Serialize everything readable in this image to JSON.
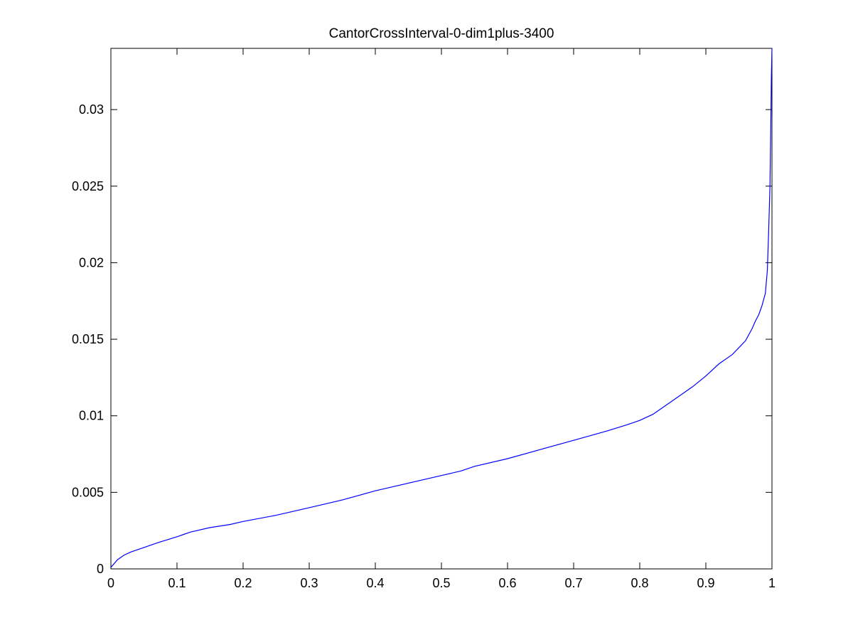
{
  "chart_data": {
    "type": "line",
    "title": "CantorCrossInterval-0-dim1plus-3400",
    "xlabel": "",
    "ylabel": "",
    "xlim": [
      0,
      1
    ],
    "ylim": [
      0,
      0.034
    ],
    "grid": false,
    "legend": "none",
    "x_ticks": [
      0,
      0.1,
      0.2,
      0.3,
      0.4,
      0.5,
      0.6,
      0.7,
      0.8,
      0.9,
      1
    ],
    "x_tick_labels": [
      "0",
      "0.1",
      "0.2",
      "0.3",
      "0.4",
      "0.5",
      "0.6",
      "0.7",
      "0.8",
      "0.9",
      "1"
    ],
    "y_ticks": [
      0,
      0.005,
      0.01,
      0.015,
      0.02,
      0.025,
      0.03
    ],
    "y_tick_labels": [
      "0",
      "0.005",
      "0.01",
      "0.015",
      "0.02",
      "0.025",
      "0.03"
    ],
    "line_color": "#0000ff",
    "series": [
      {
        "x": [
          0,
          0.01,
          0.02,
          0.03,
          0.05,
          0.07,
          0.1,
          0.12,
          0.15,
          0.18,
          0.2,
          0.25,
          0.3,
          0.35,
          0.4,
          0.45,
          0.5,
          0.53,
          0.55,
          0.6,
          0.65,
          0.7,
          0.75,
          0.78,
          0.8,
          0.82,
          0.85,
          0.88,
          0.9,
          0.92,
          0.94,
          0.96,
          0.97,
          0.975,
          0.98,
          0.985,
          0.99,
          0.993,
          0.995,
          0.997,
          0.998,
          0.999,
          1.0
        ],
        "y": [
          0.0001,
          0.0006,
          0.0009,
          0.0011,
          0.0014,
          0.0017,
          0.0021,
          0.0024,
          0.0027,
          0.0029,
          0.0031,
          0.0035,
          0.004,
          0.0045,
          0.0051,
          0.0056,
          0.0061,
          0.0064,
          0.0067,
          0.0072,
          0.0078,
          0.0084,
          0.009,
          0.0094,
          0.0097,
          0.0101,
          0.011,
          0.0119,
          0.0126,
          0.0134,
          0.014,
          0.0149,
          0.0157,
          0.0162,
          0.0166,
          0.0172,
          0.018,
          0.0195,
          0.022,
          0.025,
          0.028,
          0.032,
          0.034
        ]
      }
    ]
  }
}
